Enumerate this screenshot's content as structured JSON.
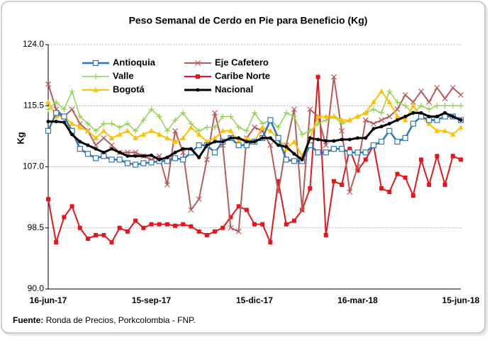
{
  "chart_data": {
    "type": "line",
    "title": "Peso Semanal de Cerdo en Pie para Beneficio (Kg)",
    "ylabel": "Kg",
    "source": {
      "label": "Fuente:",
      "text": "Ronda de Precios, Porkcolombia - FNP."
    },
    "categories": [
      "16-jun-17",
      null,
      null,
      null,
      null,
      null,
      null,
      null,
      null,
      null,
      null,
      null,
      null,
      "15-sep-17",
      null,
      null,
      null,
      null,
      null,
      null,
      null,
      null,
      null,
      null,
      null,
      null,
      "15-dic-17",
      null,
      null,
      null,
      null,
      null,
      null,
      null,
      null,
      null,
      null,
      null,
      null,
      "16-mar-18",
      null,
      null,
      null,
      null,
      null,
      null,
      null,
      null,
      null,
      null,
      null,
      null,
      "15-jun-18"
    ],
    "ylim": [
      90,
      124
    ],
    "yticks": [
      {
        "value": 90,
        "label": "90.0"
      },
      {
        "value": 98.5,
        "label": "98.5"
      },
      {
        "value": 107,
        "label": "107.0"
      },
      {
        "value": 115.5,
        "label": "115.5"
      },
      {
        "value": 124,
        "label": "124.0"
      }
    ],
    "grid": true,
    "legend": "top-left",
    "series": [
      {
        "name": "Antioquia",
        "color": "#2e75b6",
        "marker": "square-open",
        "width": 2.5,
        "values": [
          112,
          114.5,
          114,
          112,
          109.5,
          108.8,
          108.2,
          108.5,
          108,
          108,
          107.5,
          107.3,
          107.5,
          107.6,
          107.8,
          107.8,
          108.2,
          108,
          109,
          110,
          110,
          109,
          110.5,
          111,
          110,
          110,
          110.5,
          111,
          113.5,
          111,
          108,
          107.8,
          107.8,
          110,
          109,
          109,
          109.5,
          109.5,
          109,
          109,
          109,
          110,
          110.5,
          112,
          110.5,
          111,
          113,
          114,
          113.5,
          113.5,
          114,
          114,
          113.5
        ]
      },
      {
        "name": "Eje Cafetero",
        "color": "#b85a5a",
        "marker": "x",
        "width": 2,
        "values": [
          118.5,
          115,
          114,
          115,
          113,
          112,
          110,
          111,
          110,
          109,
          109,
          109,
          108.5,
          108,
          108.5,
          104.5,
          112,
          109,
          101,
          102.5,
          108,
          114.5,
          110,
          98.5,
          98,
          111,
          112.5,
          112,
          110,
          103.5,
          110,
          115,
          101,
          115,
          114,
          110,
          119.5,
          112,
          103.5,
          107,
          113.5,
          113,
          113.5,
          114,
          115,
          117,
          116,
          117.5,
          116,
          118,
          116.5,
          118,
          117
        ]
      },
      {
        "name": "Valle",
        "color": "#92d050",
        "marker": "plus",
        "width": 1.5,
        "values": [
          115,
          116,
          115,
          117.5,
          114,
          113,
          112,
          113,
          113,
          112.5,
          113,
          112,
          113.5,
          115,
          114,
          112,
          113.5,
          114.5,
          113,
          112,
          112.5,
          112.5,
          114,
          114,
          112.5,
          112,
          114.5,
          113,
          113.5,
          112.5,
          114.5,
          114,
          111.5,
          112,
          113,
          113.5,
          114,
          113,
          113.5,
          114,
          114.5,
          115,
          114.5,
          117.5,
          116,
          115.5,
          114.5,
          115.5,
          115,
          115.5,
          115.5,
          115.5,
          115.5
        ]
      },
      {
        "name": "Caribe Norte",
        "color": "#e8141b",
        "marker": "square",
        "width": 2,
        "values": [
          102.5,
          96.5,
          100,
          101.5,
          98.5,
          97,
          97.5,
          97.5,
          96.5,
          98.5,
          98,
          99.5,
          98.5,
          99,
          99,
          99,
          98.8,
          99,
          98.7,
          98,
          97.5,
          98,
          98.5,
          100,
          101.5,
          101,
          99,
          99,
          96.5,
          105,
          99,
          99.5,
          101,
          104,
          119.5,
          97.5,
          105,
          104.5,
          109.5,
          106.5,
          108,
          110,
          104,
          103.5,
          106,
          105.5,
          103,
          108,
          104.5,
          108.5,
          104.5,
          108.5,
          108
        ]
      },
      {
        "name": "Bogotá",
        "color": "#ffc000",
        "marker": "triangle",
        "width": 2,
        "values": [
          116,
          114,
          114,
          113,
          112.5,
          112,
          111,
          112,
          111,
          111.5,
          112,
          111,
          111.5,
          112,
          111.5,
          111,
          110.5,
          111,
          112.5,
          111.5,
          110.5,
          111,
          112,
          112,
          110.5,
          111,
          110.5,
          112.5,
          112,
          111,
          109.5,
          110.5,
          108.5,
          111,
          114,
          114,
          114,
          113.5,
          113.5,
          114,
          114.5,
          116,
          117.5,
          116,
          114,
          113.5,
          115.5,
          114,
          113,
          112,
          112,
          111.5,
          112.5
        ]
      },
      {
        "name": "Nacional",
        "color": "#000000",
        "marker": "dot",
        "width": 3,
        "values": [
          113.3,
          113.3,
          113.2,
          111.5,
          110.5,
          110,
          109.5,
          109,
          109.5,
          109,
          108.5,
          108.5,
          108.5,
          108.6,
          108,
          108.3,
          109,
          109.5,
          109.5,
          108.3,
          110,
          110.5,
          110.5,
          111,
          111,
          110.5,
          110.5,
          111,
          111,
          110,
          109.8,
          108.8,
          108,
          111,
          110.8,
          110.6,
          110.6,
          110.8,
          110.8,
          111,
          111,
          112.3,
          112.6,
          113,
          113.5,
          114,
          114.5,
          114.5,
          114,
          114,
          114.5,
          114,
          113.5
        ]
      }
    ]
  }
}
